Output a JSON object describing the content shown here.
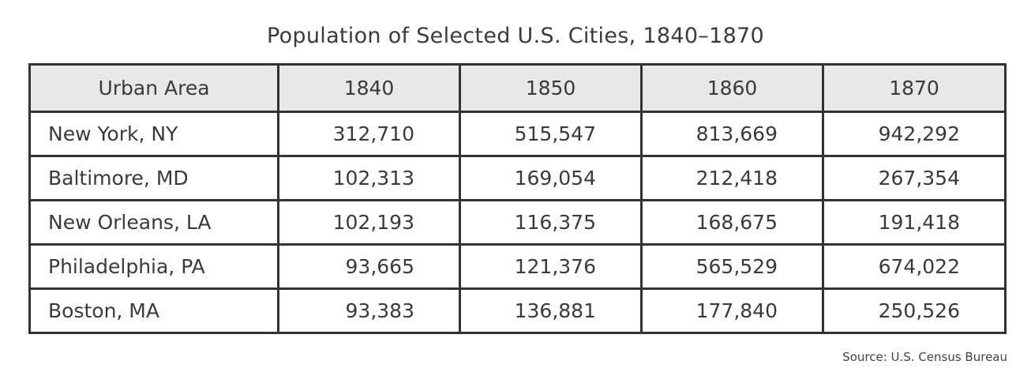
{
  "chart_data": {
    "type": "table",
    "title": "Population of Selected U.S. Cities, 1840–1870",
    "columns": [
      "Urban Area",
      "1840",
      "1850",
      "1860",
      "1870"
    ],
    "rows": [
      {
        "city": "New York, NY",
        "values": [
          "312,710",
          "515,547",
          "813,669",
          "942,292"
        ]
      },
      {
        "city": "Baltimore, MD",
        "values": [
          "102,313",
          "169,054",
          "212,418",
          "267,354"
        ]
      },
      {
        "city": "New Orleans, LA",
        "values": [
          "102,193",
          "116,375",
          "168,675",
          "191,418"
        ]
      },
      {
        "city": "Philadelphia, PA",
        "values": [
          "93,665",
          "121,376",
          "565,529",
          "674,022"
        ]
      },
      {
        "city": "Boston, MA",
        "values": [
          "93,383",
          "136,881",
          "177,840",
          "250,526"
        ]
      }
    ],
    "source": "Source: U.S. Census Bureau"
  }
}
